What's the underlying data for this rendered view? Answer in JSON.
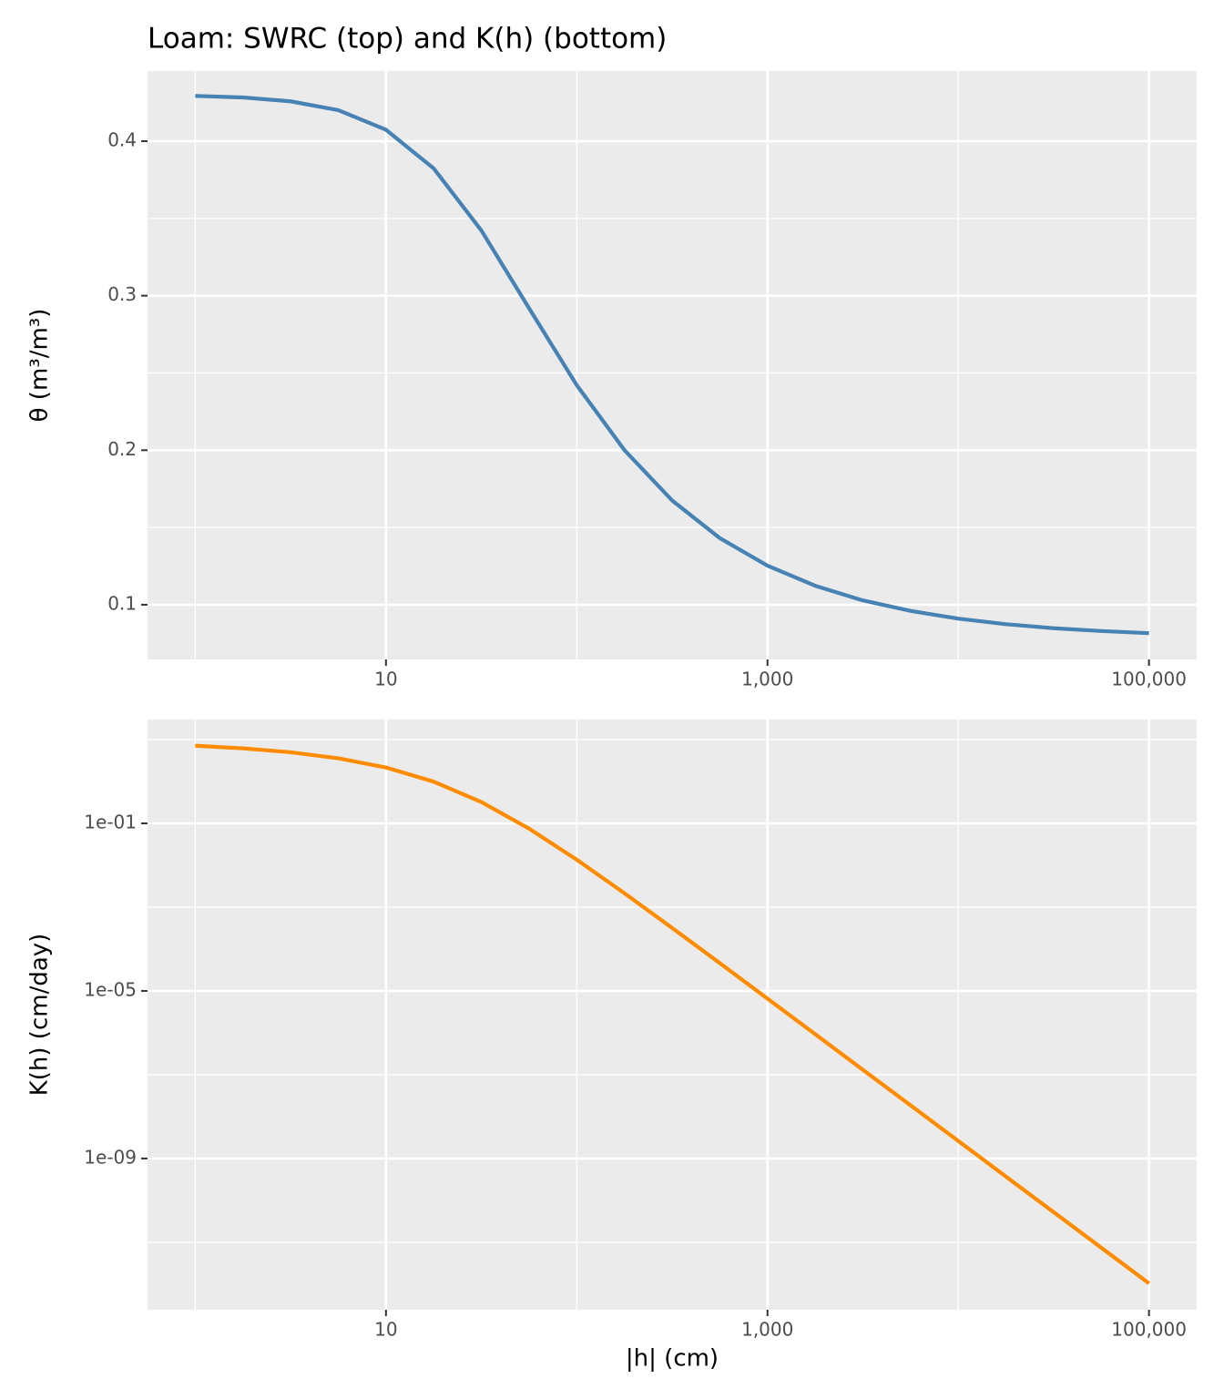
{
  "chart_data": [
    {
      "type": "line",
      "title": "Loam: SWRC (top) and K(h) (bottom)",
      "ylabel": "θ (m³/m³)",
      "color": "#4682b4",
      "x": [
        1,
        1.778,
        3.162,
        5.623,
        10,
        17.78,
        31.62,
        56.23,
        100,
        177.8,
        316.2,
        562.3,
        1000,
        1778,
        3162,
        5623,
        10000,
        17783,
        31623,
        56234,
        100000
      ],
      "values": [
        0.4293,
        0.4283,
        0.4258,
        0.4201,
        0.4074,
        0.3824,
        0.3422,
        0.2919,
        0.2421,
        0.2001,
        0.1675,
        0.1431,
        0.1253,
        0.1123,
        0.1028,
        0.096,
        0.091,
        0.0874,
        0.0848,
        0.083,
        0.0816
      ],
      "xscale": "log",
      "xlim": [
        0.5623,
        177828
      ],
      "xticks": [
        10,
        {
          "value": 1000,
          "label": "1,000"
        },
        {
          "value": 100000,
          "label": "100,000"
        }
      ],
      "ylim": [
        0.0646,
        0.4454
      ],
      "yticks": [
        0.1,
        0.2,
        0.3,
        0.4
      ],
      "grid": true
    },
    {
      "type": "line",
      "xlabel": "|h| (cm)",
      "ylabel": "K(h) (cm/day)",
      "color": "#ff8c00",
      "x": [
        1,
        1.778,
        3.162,
        5.623,
        10,
        17.78,
        31.62,
        56.23,
        100,
        177.8,
        316.2,
        562.3,
        1000,
        1778,
        3162,
        5623,
        10000,
        17783,
        31623,
        56234,
        100000
      ],
      "values": [
        7.131,
        6.171,
        4.974,
        3.581,
        2.155,
        0.9905,
        0.3226,
        0.0749,
        0.01359,
        0.002152,
        0.000319,
        4.598e-05,
        6.554e-06,
        9.287e-07,
        1.313e-07,
        1.855e-08,
        2.623e-09,
        3.705e-10,
        5.232e-11,
        7.39e-12,
        1.044e-12
      ],
      "xscale": "log",
      "xlim": [
        0.5623,
        177828
      ],
      "xticks": [
        10,
        {
          "value": 1000,
          "label": "1,000"
        },
        {
          "value": 100000,
          "label": "100,000"
        }
      ],
      "yscale": "log",
      "ylim": [
        2.45e-13,
        30.1
      ],
      "yticks": [
        {
          "value": 1e-09,
          "label": "1e-09"
        },
        {
          "value": 1e-05,
          "label": "1e-05"
        },
        {
          "value": 0.1,
          "label": "1e-01"
        }
      ],
      "grid": true
    }
  ]
}
